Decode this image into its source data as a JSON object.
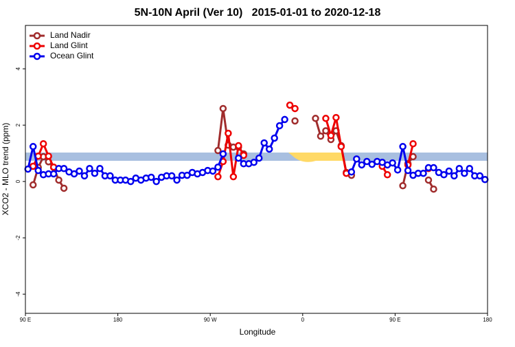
{
  "chart_data": {
    "type": "line",
    "title": "5N-10N April (Ver 10)   2015-01-01 to 2020-12-18",
    "x_label": "Longitude",
    "y_label": "XCO2 - MLO trend (ppm)",
    "x": [
      92.5,
      97.5,
      102.5,
      107.5,
      112.5,
      117.5,
      122.5,
      127.5,
      132.5,
      137.5,
      142.5,
      147.5,
      152.5,
      157.5,
      162.5,
      167.5,
      172.5,
      177.5,
      182.5,
      187.5,
      192.5,
      197.5,
      202.5,
      207.5,
      212.5,
      217.5,
      222.5,
      227.5,
      232.5,
      237.5,
      242.5,
      247.5,
      252.5,
      257.5,
      262.5,
      267.5,
      272.5,
      277.5,
      282.5,
      287.5,
      292.5,
      297.5,
      302.5,
      307.5,
      312.5,
      317.5,
      322.5,
      327.5,
      332.5,
      337.5,
      342.5,
      347.5,
      352.5,
      357.5,
      362.5,
      367.5,
      372.5,
      377.5,
      382.5,
      387.5,
      392.5,
      397.5,
      402.5,
      407.5,
      412.5,
      417.5,
      422.5,
      427.5,
      432.5,
      437.5,
      442.5,
      447.5,
      452.5,
      457.5,
      462.5,
      467.5,
      472.5,
      477.5,
      482.5,
      487.5,
      492.5,
      497.5,
      502.5,
      507.5,
      512.5,
      517.5,
      522.5,
      527.5,
      532.5,
      537.5
    ],
    "xlim": [
      90,
      540
    ],
    "xticks": [
      {
        "value": 90,
        "label": "90 E"
      },
      180,
      {
        "value": 270,
        "label": "90 W"
      },
      {
        "value": 360,
        "label": "0"
      },
      {
        "value": 450,
        "label": "90 E"
      },
      {
        "value": 540,
        "label": "180"
      }
    ],
    "ylim": [
      -4.68,
      5.54
    ],
    "yticks": [
      -4,
      -2,
      0,
      2,
      4
    ],
    "legend": "top-left",
    "series": [
      {
        "name": "Land Nadir",
        "color": "#a02c2c",
        "values": [
          null,
          -0.12,
          0.5,
          0.88,
          0.7,
          0.5,
          0.05,
          -0.24,
          null,
          null,
          null,
          null,
          null,
          null,
          null,
          null,
          null,
          null,
          null,
          null,
          null,
          null,
          null,
          null,
          null,
          null,
          null,
          null,
          null,
          null,
          null,
          null,
          null,
          null,
          null,
          null,
          null,
          1.1,
          2.59,
          1.29,
          1.22,
          1.22,
          0.98,
          null,
          null,
          null,
          null,
          null,
          null,
          null,
          null,
          null,
          2.15,
          null,
          null,
          null,
          2.24,
          1.61,
          1.8,
          1.49,
          1.8,
          1.27,
          0.32,
          0.22,
          null,
          null,
          null,
          null,
          null,
          null,
          null,
          null,
          null,
          -0.15,
          0.63,
          0.88,
          null,
          null,
          0.05,
          -0.27,
          null,
          null,
          null,
          null,
          null,
          null,
          null,
          null,
          null,
          null
        ]
      },
      {
        "name": "Land Glint",
        "color": "#ee0000",
        "values": [
          null,
          0.54,
          0.9,
          1.34,
          0.9,
          0.51,
          null,
          null,
          null,
          null,
          null,
          null,
          null,
          null,
          null,
          null,
          null,
          null,
          null,
          null,
          null,
          null,
          null,
          null,
          null,
          null,
          null,
          null,
          null,
          null,
          null,
          null,
          null,
          null,
          null,
          null,
          null,
          0.17,
          0.71,
          1.71,
          0.17,
          1.27,
          0.93,
          null,
          null,
          null,
          null,
          null,
          null,
          null,
          null,
          2.71,
          2.59,
          null,
          null,
          null,
          null,
          null,
          2.24,
          1.63,
          2.27,
          1.24,
          0.29,
          null,
          null,
          null,
          null,
          null,
          null,
          0.54,
          0.24,
          null,
          null,
          null,
          0.59,
          1.34,
          null,
          null,
          0.46,
          null,
          null,
          null,
          null,
          null,
          null,
          null,
          null,
          null,
          null,
          null
        ]
      },
      {
        "name": "Ocean Glint",
        "color": "#0000ee",
        "values": [
          0.44,
          1.24,
          0.39,
          0.24,
          0.27,
          0.27,
          0.46,
          0.46,
          0.34,
          0.27,
          0.37,
          0.2,
          0.46,
          0.29,
          0.46,
          0.2,
          0.2,
          0.05,
          0.05,
          0.05,
          0.0,
          0.12,
          0.05,
          0.12,
          0.15,
          0.0,
          0.15,
          0.2,
          0.2,
          0.05,
          0.22,
          0.22,
          0.32,
          0.27,
          0.32,
          0.39,
          0.37,
          0.51,
          0.98,
          null,
          null,
          0.83,
          0.63,
          0.63,
          0.68,
          0.83,
          1.37,
          1.15,
          1.54,
          1.98,
          2.2,
          null,
          null,
          null,
          null,
          null,
          null,
          null,
          null,
          null,
          null,
          null,
          null,
          0.34,
          0.8,
          0.59,
          0.71,
          0.61,
          0.71,
          0.68,
          0.59,
          0.66,
          0.41,
          1.24,
          0.39,
          0.22,
          0.29,
          0.29,
          0.49,
          0.49,
          0.32,
          0.24,
          0.37,
          0.2,
          0.46,
          0.29,
          0.46,
          0.2,
          0.2,
          0.07
        ]
      }
    ]
  }
}
